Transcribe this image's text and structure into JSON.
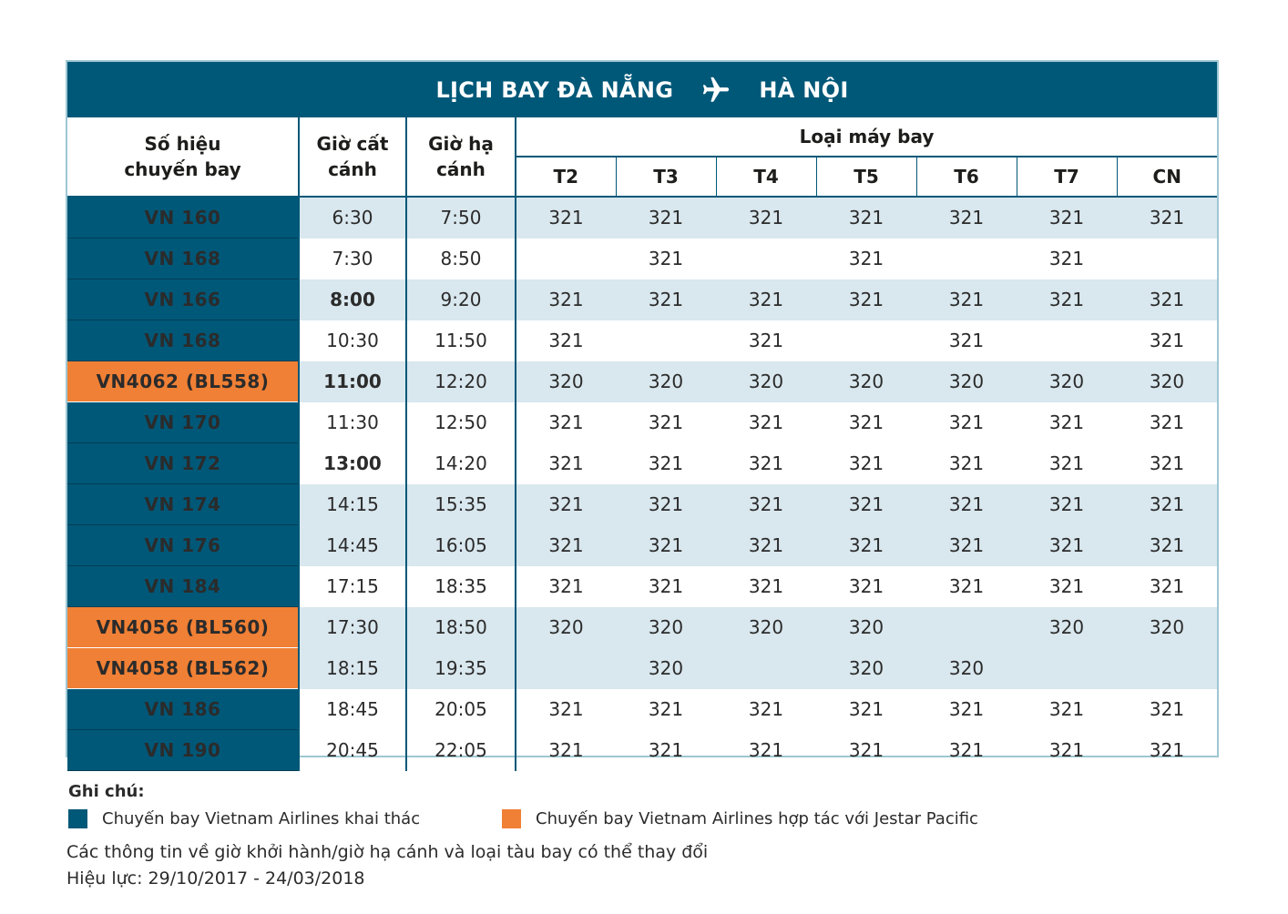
{
  "title": {
    "from": "LỊCH BAY ĐÀ NẴNG",
    "to": "HÀ NỘI",
    "icon": "airplane-icon"
  },
  "headers": {
    "flight": "Số hiệu chuyến bay",
    "departure": "Giờ cất cánh",
    "arrival": "Giờ hạ cánh",
    "aircraft": "Loại máy bay",
    "days": [
      "T2",
      "T3",
      "T4",
      "T5",
      "T6",
      "T7",
      "CN"
    ]
  },
  "rows": [
    {
      "flight": "VN 160",
      "dep": "6:30",
      "arr": "7:50",
      "days": [
        "321",
        "321",
        "321",
        "321",
        "321",
        "321",
        "321"
      ],
      "operator": "vn",
      "dep_bold": false
    },
    {
      "flight": "VN 168",
      "dep": "7:30",
      "arr": "8:50",
      "days": [
        "",
        "321",
        "",
        "321",
        "",
        "321",
        ""
      ],
      "operator": "vn",
      "dep_bold": false
    },
    {
      "flight": "VN 166",
      "dep": "8:00",
      "arr": "9:20",
      "days": [
        "321",
        "321",
        "321",
        "321",
        "321",
        "321",
        "321"
      ],
      "operator": "vn",
      "dep_bold": true
    },
    {
      "flight": "VN 168",
      "dep": "10:30",
      "arr": "11:50",
      "days": [
        "321",
        "",
        "321",
        "",
        "321",
        "",
        "321"
      ],
      "operator": "vn",
      "dep_bold": false
    },
    {
      "flight": "VN4062 (BL558)",
      "dep": "11:00",
      "arr": "12:20",
      "days": [
        "320",
        "320",
        "320",
        "320",
        "320",
        "320",
        "320"
      ],
      "operator": "bl",
      "dep_bold": true
    },
    {
      "flight": "VN 170",
      "dep": "11:30",
      "arr": "12:50",
      "days": [
        "321",
        "321",
        "321",
        "321",
        "321",
        "321",
        "321"
      ],
      "operator": "vn",
      "dep_bold": false
    },
    {
      "flight": "VN 172",
      "dep": "13:00",
      "arr": "14:20",
      "days": [
        "321",
        "321",
        "321",
        "321",
        "321",
        "321",
        "321"
      ],
      "operator": "vn",
      "dep_bold": true
    },
    {
      "flight": "VN 174",
      "dep": "14:15",
      "arr": "15:35",
      "days": [
        "321",
        "321",
        "321",
        "321",
        "321",
        "321",
        "321"
      ],
      "operator": "vn",
      "dep_bold": false
    },
    {
      "flight": "VN 176",
      "dep": "14:45",
      "arr": "16:05",
      "days": [
        "321",
        "321",
        "321",
        "321",
        "321",
        "321",
        "321"
      ],
      "operator": "vn",
      "dep_bold": false
    },
    {
      "flight": "VN 184",
      "dep": "17:15",
      "arr": "18:35",
      "days": [
        "321",
        "321",
        "321",
        "321",
        "321",
        "321",
        "321"
      ],
      "operator": "vn",
      "dep_bold": false
    },
    {
      "flight": "VN4056 (BL560)",
      "dep": "17:30",
      "arr": "18:50",
      "days": [
        "320",
        "320",
        "320",
        "320",
        "",
        "320",
        "320"
      ],
      "operator": "bl",
      "dep_bold": false
    },
    {
      "flight": "VN4058 (BL562)",
      "dep": "18:15",
      "arr": "19:35",
      "days": [
        "",
        "320",
        "",
        "320",
        "320",
        "",
        ""
      ],
      "operator": "bl",
      "dep_bold": false
    },
    {
      "flight": "VN 186",
      "dep": "18:45",
      "arr": "20:05",
      "days": [
        "321",
        "321",
        "321",
        "321",
        "321",
        "321",
        "321"
      ],
      "operator": "vn",
      "dep_bold": false
    },
    {
      "flight": "VN 190",
      "dep": "20:45",
      "arr": "22:05",
      "days": [
        "321",
        "321",
        "321",
        "321",
        "321",
        "321",
        "321"
      ],
      "operator": "vn",
      "dep_bold": false
    }
  ],
  "shaded_rows": [
    true,
    false,
    true,
    false,
    true,
    false,
    false,
    true,
    true,
    false,
    true,
    true,
    false,
    false
  ],
  "notes": {
    "title": "Ghi chú:",
    "legend_vn": "Chuyến bay Vietnam Airlines khai thác",
    "legend_bl": "Chuyến bay Vietnam Airlines hợp tác với Jestar Pacific",
    "disclaimer": "Các thông tin về giờ khởi hành/giờ hạ cánh và loại tàu bay có thể thay đổi",
    "validity": "Hiệu lực:  29/10/2017 - 24/03/2018"
  },
  "colors": {
    "vn": "#005878",
    "bl": "#f08035",
    "shade": "#d9e7ee",
    "border": "#9ec7d3"
  }
}
